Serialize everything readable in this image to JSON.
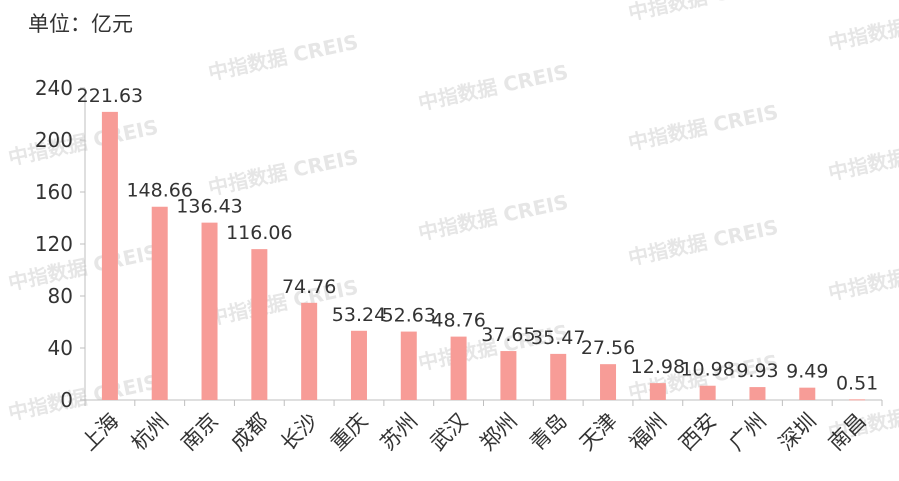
{
  "unit_label": "单位：亿元",
  "watermark": "中指数据 CREIS",
  "colors": {
    "bar": "#f79c97",
    "axis": "#bfbfbf",
    "text": "#333333"
  },
  "chart_data": {
    "type": "bar",
    "categories": [
      "上海",
      "杭州",
      "南京",
      "成都",
      "长沙",
      "重庆",
      "苏州",
      "武汉",
      "郑州",
      "青岛",
      "天津",
      "福州",
      "西安",
      "广州",
      "深圳",
      "南昌"
    ],
    "values": [
      221.63,
      148.66,
      136.43,
      116.06,
      74.76,
      53.24,
      52.63,
      48.76,
      37.65,
      35.47,
      27.56,
      12.98,
      10.98,
      9.93,
      9.49,
      0.51
    ],
    "data_labels": [
      "221.63",
      "148.66",
      "136.43",
      "116.06",
      "74.76",
      "53.24",
      "52.63",
      "48.76",
      "37.65",
      "35.47",
      "27.56",
      "12.98",
      "10.98",
      "9.93",
      "9.49",
      "0.51"
    ],
    "yticks": [
      "0",
      "40",
      "80",
      "120",
      "160",
      "200",
      "240"
    ],
    "ylim": [
      0,
      240
    ],
    "grid": false,
    "legend": "none"
  }
}
